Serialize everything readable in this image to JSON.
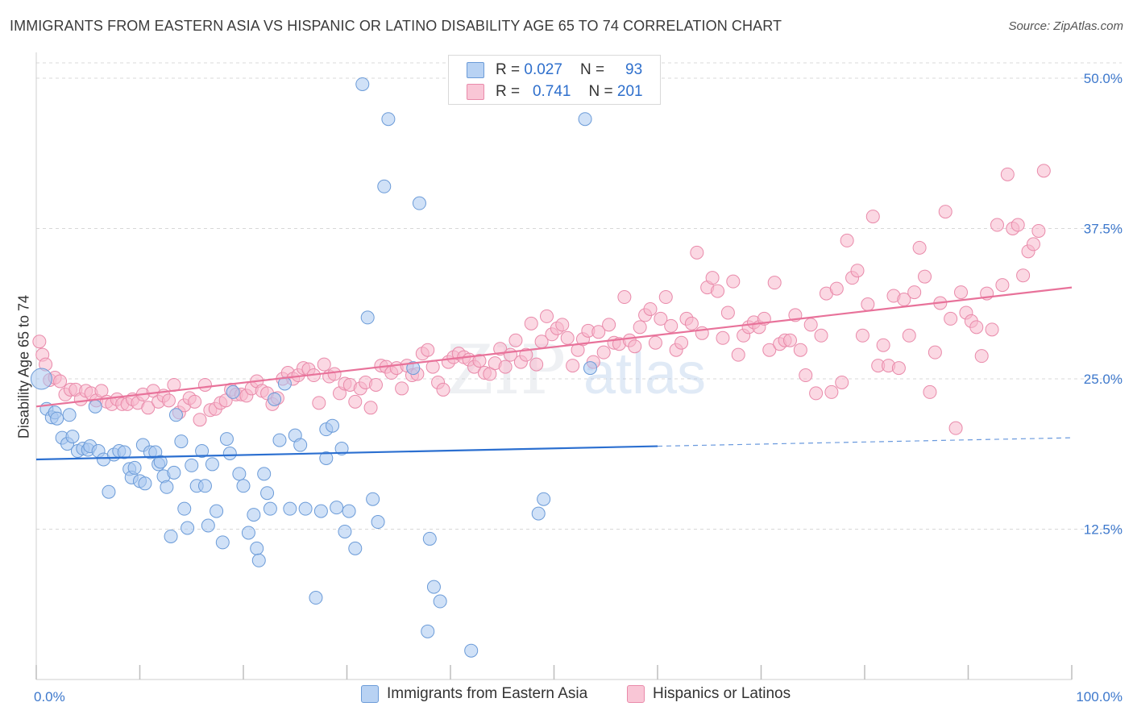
{
  "title": "IMMIGRANTS FROM EASTERN ASIA VS HISPANIC OR LATINO DISABILITY AGE 65 TO 74 CORRELATION CHART",
  "source": "Source: ZipAtlas.com",
  "watermark": {
    "zip": "ZIP",
    "atlas": "atlas"
  },
  "legend": {
    "rows": [
      {
        "r_label": "R =",
        "r_value": "0.027",
        "n_label": "N =",
        "n_value": "93"
      },
      {
        "r_label": "R =",
        "r_value": "0.741",
        "n_label": "N =",
        "n_value": "201"
      }
    ]
  },
  "bottom_legend": [
    "Immigrants from Eastern Asia",
    "Hispanics or Latinos"
  ],
  "colors": {
    "blue_fill": "#a9c8f0",
    "blue_stroke": "#6b9bd8",
    "blue_line": "#2b6fd0",
    "pink_fill": "#f7b8cc",
    "pink_stroke": "#e98aaa",
    "pink_line": "#e8729a",
    "tick_text": "#3d78cc",
    "grid": "#d8d8d8"
  },
  "chart_data": {
    "type": "scatter",
    "title": "IMMIGRANTS FROM EASTERN ASIA VS HISPANIC OR LATINO DISABILITY AGE 65 TO 74 CORRELATION CHART",
    "xlabel": "",
    "ylabel": "Disability Age 65 to 74",
    "xlim": [
      0,
      100
    ],
    "ylim": [
      0,
      50
    ],
    "x_tick_labels": [
      "0.0%",
      "100.0%"
    ],
    "y_ticks": [
      12.5,
      25.0,
      37.5,
      50.0
    ],
    "y_tick_labels": [
      "12.5%",
      "25.0%",
      "37.5%",
      "50.0%"
    ],
    "grid": "horizontal dashed",
    "legend_position": "top-center",
    "series": [
      {
        "name": "Immigrants from Eastern Asia",
        "color": "#a9c8f0",
        "R": 0.027,
        "N": 93,
        "trend": {
          "x": [
            0,
            60
          ],
          "y": [
            18.3,
            19.4
          ],
          "dashed_extension": {
            "x": [
              60,
              100
            ],
            "y": [
              19.4,
              20.1
            ]
          }
        },
        "points": [
          [
            0.5,
            25.0
          ],
          [
            1.0,
            22.5
          ],
          [
            1.5,
            21.8
          ],
          [
            1.8,
            22.2
          ],
          [
            2.0,
            21.7
          ],
          [
            3.2,
            22.0
          ],
          [
            2.5,
            20.1
          ],
          [
            3.0,
            19.6
          ],
          [
            3.5,
            20.2
          ],
          [
            4.0,
            19.0
          ],
          [
            4.5,
            19.2
          ],
          [
            5.0,
            19.1
          ],
          [
            5.2,
            19.4
          ],
          [
            5.7,
            22.7
          ],
          [
            6.0,
            19.0
          ],
          [
            6.5,
            18.3
          ],
          [
            7.0,
            15.6
          ],
          [
            7.5,
            18.7
          ],
          [
            8.0,
            19.0
          ],
          [
            8.5,
            18.9
          ],
          [
            9.0,
            17.5
          ],
          [
            9.2,
            16.8
          ],
          [
            9.5,
            17.6
          ],
          [
            10.0,
            16.5
          ],
          [
            10.3,
            19.5
          ],
          [
            10.5,
            16.3
          ],
          [
            11.0,
            18.9
          ],
          [
            11.5,
            18.9
          ],
          [
            11.8,
            17.9
          ],
          [
            12.0,
            18.1
          ],
          [
            12.3,
            16.9
          ],
          [
            12.6,
            16.0
          ],
          [
            13.0,
            11.9
          ],
          [
            13.3,
            17.2
          ],
          [
            13.5,
            22.0
          ],
          [
            14.0,
            19.8
          ],
          [
            14.3,
            14.2
          ],
          [
            14.6,
            12.6
          ],
          [
            15.0,
            17.8
          ],
          [
            15.5,
            16.1
          ],
          [
            16.0,
            19.0
          ],
          [
            16.3,
            16.1
          ],
          [
            16.6,
            12.8
          ],
          [
            17.0,
            17.9
          ],
          [
            17.4,
            14.0
          ],
          [
            18.0,
            11.4
          ],
          [
            18.4,
            20.0
          ],
          [
            18.7,
            18.8
          ],
          [
            19.0,
            23.9
          ],
          [
            19.6,
            17.1
          ],
          [
            20.0,
            16.1
          ],
          [
            20.5,
            12.2
          ],
          [
            21.0,
            13.7
          ],
          [
            21.3,
            10.9
          ],
          [
            21.5,
            9.9
          ],
          [
            22.0,
            17.1
          ],
          [
            22.3,
            15.5
          ],
          [
            22.6,
            14.2
          ],
          [
            23.0,
            23.3
          ],
          [
            23.5,
            19.9
          ],
          [
            24.0,
            24.6
          ],
          [
            24.5,
            14.2
          ],
          [
            25.0,
            20.3
          ],
          [
            25.5,
            19.5
          ],
          [
            26.0,
            14.2
          ],
          [
            27.0,
            6.8
          ],
          [
            27.5,
            14.0
          ],
          [
            28.0,
            18.4
          ],
          [
            28.0,
            20.8
          ],
          [
            28.6,
            21.1
          ],
          [
            29.0,
            14.3
          ],
          [
            29.5,
            19.2
          ],
          [
            29.8,
            12.3
          ],
          [
            30.2,
            14.0
          ],
          [
            30.8,
            10.9
          ],
          [
            31.5,
            49.5
          ],
          [
            32.0,
            30.1
          ],
          [
            32.5,
            15.0
          ],
          [
            33.0,
            13.1
          ],
          [
            33.6,
            41.0
          ],
          [
            34.0,
            46.6
          ],
          [
            36.4,
            25.9
          ],
          [
            37.0,
            39.6
          ],
          [
            38.0,
            11.7
          ],
          [
            38.4,
            7.7
          ],
          [
            39.0,
            6.5
          ],
          [
            37.8,
            4.0
          ],
          [
            42.0,
            2.4
          ],
          [
            48.5,
            13.8
          ],
          [
            49.0,
            15.0
          ],
          [
            53.0,
            46.6
          ],
          [
            53.5,
            25.9
          ]
        ]
      },
      {
        "name": "Hispanics or Latinos",
        "color": "#f7b8cc",
        "R": 0.741,
        "N": 201,
        "trend": {
          "x": [
            0,
            100
          ],
          "y": [
            22.7,
            32.6
          ]
        },
        "points": [
          [
            0.3,
            28.1
          ],
          [
            0.6,
            27.0
          ],
          [
            0.9,
            26.2
          ],
          [
            1.3,
            24.9
          ],
          [
            1.8,
            25.1
          ],
          [
            2.3,
            24.8
          ],
          [
            2.8,
            23.7
          ],
          [
            3.3,
            24.1
          ],
          [
            3.8,
            24.1
          ],
          [
            4.3,
            23.3
          ],
          [
            4.8,
            24.0
          ],
          [
            5.3,
            23.8
          ],
          [
            5.8,
            23.2
          ],
          [
            6.3,
            24.0
          ],
          [
            6.8,
            23.1
          ],
          [
            7.3,
            22.9
          ],
          [
            7.8,
            23.3
          ],
          [
            8.3,
            22.9
          ],
          [
            8.8,
            22.9
          ],
          [
            9.3,
            23.3
          ],
          [
            9.8,
            23.0
          ],
          [
            10.3,
            23.7
          ],
          [
            10.8,
            22.6
          ],
          [
            11.3,
            24.0
          ],
          [
            11.8,
            23.1
          ],
          [
            12.3,
            23.6
          ],
          [
            12.8,
            23.2
          ],
          [
            13.3,
            24.5
          ],
          [
            13.8,
            22.2
          ],
          [
            14.3,
            22.8
          ],
          [
            14.8,
            23.4
          ],
          [
            15.3,
            23.1
          ],
          [
            15.8,
            21.6
          ],
          [
            16.3,
            24.5
          ],
          [
            16.8,
            22.4
          ],
          [
            17.3,
            22.5
          ],
          [
            17.8,
            23.0
          ],
          [
            18.3,
            23.2
          ],
          [
            18.8,
            24.1
          ],
          [
            19.3,
            23.7
          ],
          [
            19.8,
            23.7
          ],
          [
            20.3,
            23.6
          ],
          [
            20.8,
            24.2
          ],
          [
            21.3,
            24.8
          ],
          [
            21.8,
            24.0
          ],
          [
            22.3,
            23.8
          ],
          [
            22.8,
            22.9
          ],
          [
            23.3,
            23.4
          ],
          [
            23.8,
            25.0
          ],
          [
            24.3,
            25.5
          ],
          [
            24.8,
            25.0
          ],
          [
            25.3,
            25.3
          ],
          [
            25.8,
            25.9
          ],
          [
            26.3,
            25.8
          ],
          [
            26.8,
            25.3
          ],
          [
            27.3,
            23.0
          ],
          [
            27.8,
            26.2
          ],
          [
            28.3,
            25.2
          ],
          [
            28.8,
            25.4
          ],
          [
            29.3,
            23.8
          ],
          [
            29.8,
            24.6
          ],
          [
            30.3,
            24.5
          ],
          [
            30.8,
            23.1
          ],
          [
            31.3,
            24.2
          ],
          [
            31.8,
            24.7
          ],
          [
            32.3,
            22.6
          ],
          [
            32.8,
            24.5
          ],
          [
            33.3,
            26.1
          ],
          [
            33.8,
            26.0
          ],
          [
            34.3,
            25.5
          ],
          [
            34.8,
            25.9
          ],
          [
            35.3,
            24.2
          ],
          [
            35.8,
            26.1
          ],
          [
            36.3,
            25.3
          ],
          [
            36.8,
            25.4
          ],
          [
            37.3,
            27.1
          ],
          [
            37.8,
            27.4
          ],
          [
            38.3,
            26.0
          ],
          [
            38.8,
            24.7
          ],
          [
            39.3,
            24.1
          ],
          [
            39.8,
            26.4
          ],
          [
            40.3,
            26.8
          ],
          [
            40.8,
            27.1
          ],
          [
            41.3,
            26.8
          ],
          [
            41.8,
            26.6
          ],
          [
            42.3,
            26.0
          ],
          [
            42.8,
            26.5
          ],
          [
            43.3,
            25.5
          ],
          [
            43.8,
            25.4
          ],
          [
            44.3,
            26.3
          ],
          [
            44.8,
            27.5
          ],
          [
            45.3,
            26.0
          ],
          [
            45.8,
            27.0
          ],
          [
            46.3,
            28.2
          ],
          [
            46.8,
            26.4
          ],
          [
            47.3,
            27.0
          ],
          [
            47.8,
            29.6
          ],
          [
            48.3,
            26.2
          ],
          [
            48.8,
            28.1
          ],
          [
            49.3,
            30.2
          ],
          [
            49.8,
            28.7
          ],
          [
            50.3,
            29.2
          ],
          [
            50.8,
            29.5
          ],
          [
            51.3,
            28.4
          ],
          [
            51.8,
            26.1
          ],
          [
            52.3,
            27.4
          ],
          [
            52.8,
            28.3
          ],
          [
            53.3,
            29.0
          ],
          [
            53.8,
            26.4
          ],
          [
            54.3,
            28.9
          ],
          [
            54.8,
            27.2
          ],
          [
            55.3,
            29.5
          ],
          [
            55.8,
            28.0
          ],
          [
            56.3,
            27.9
          ],
          [
            56.8,
            31.8
          ],
          [
            57.3,
            28.2
          ],
          [
            57.8,
            27.7
          ],
          [
            58.3,
            29.3
          ],
          [
            58.8,
            30.3
          ],
          [
            59.3,
            30.8
          ],
          [
            59.8,
            28.0
          ],
          [
            60.3,
            30.0
          ],
          [
            60.8,
            31.8
          ],
          [
            61.3,
            29.4
          ],
          [
            61.8,
            27.4
          ],
          [
            62.3,
            28.0
          ],
          [
            62.8,
            30.0
          ],
          [
            63.3,
            29.6
          ],
          [
            63.8,
            35.5
          ],
          [
            64.3,
            28.8
          ],
          [
            64.8,
            32.6
          ],
          [
            65.3,
            33.4
          ],
          [
            65.8,
            32.3
          ],
          [
            66.3,
            28.4
          ],
          [
            66.8,
            30.5
          ],
          [
            67.3,
            33.1
          ],
          [
            67.8,
            27.0
          ],
          [
            68.3,
            28.6
          ],
          [
            68.8,
            29.3
          ],
          [
            69.3,
            29.7
          ],
          [
            69.8,
            29.3
          ],
          [
            70.3,
            30.0
          ],
          [
            70.8,
            27.4
          ],
          [
            71.3,
            33.0
          ],
          [
            71.8,
            27.9
          ],
          [
            72.3,
            28.2
          ],
          [
            72.8,
            28.2
          ],
          [
            73.3,
            30.3
          ],
          [
            73.8,
            27.4
          ],
          [
            74.3,
            25.3
          ],
          [
            74.8,
            29.5
          ],
          [
            75.3,
            23.8
          ],
          [
            75.8,
            28.6
          ],
          [
            76.3,
            32.1
          ],
          [
            76.8,
            23.9
          ],
          [
            77.3,
            32.5
          ],
          [
            77.8,
            24.7
          ],
          [
            78.3,
            36.5
          ],
          [
            78.8,
            33.4
          ],
          [
            79.3,
            34.0
          ],
          [
            79.8,
            28.6
          ],
          [
            80.3,
            31.2
          ],
          [
            80.8,
            38.5
          ],
          [
            81.3,
            26.1
          ],
          [
            81.8,
            27.8
          ],
          [
            82.3,
            26.1
          ],
          [
            82.8,
            31.9
          ],
          [
            83.3,
            25.9
          ],
          [
            83.8,
            31.6
          ],
          [
            84.3,
            28.6
          ],
          [
            84.8,
            32.2
          ],
          [
            85.3,
            35.9
          ],
          [
            85.8,
            33.5
          ],
          [
            86.3,
            23.9
          ],
          [
            86.8,
            27.2
          ],
          [
            87.3,
            31.3
          ],
          [
            87.8,
            38.9
          ],
          [
            88.3,
            30.0
          ],
          [
            88.8,
            20.9
          ],
          [
            89.3,
            32.2
          ],
          [
            89.8,
            30.5
          ],
          [
            90.3,
            29.8
          ],
          [
            90.8,
            29.3
          ],
          [
            91.3,
            26.9
          ],
          [
            91.8,
            32.1
          ],
          [
            92.3,
            29.1
          ],
          [
            92.8,
            37.8
          ],
          [
            93.3,
            32.8
          ],
          [
            93.8,
            42.0
          ],
          [
            94.3,
            37.5
          ],
          [
            94.8,
            37.8
          ],
          [
            95.3,
            33.6
          ],
          [
            95.8,
            35.6
          ],
          [
            96.3,
            36.2
          ],
          [
            96.8,
            37.3
          ],
          [
            97.3,
            42.3
          ]
        ]
      }
    ]
  }
}
